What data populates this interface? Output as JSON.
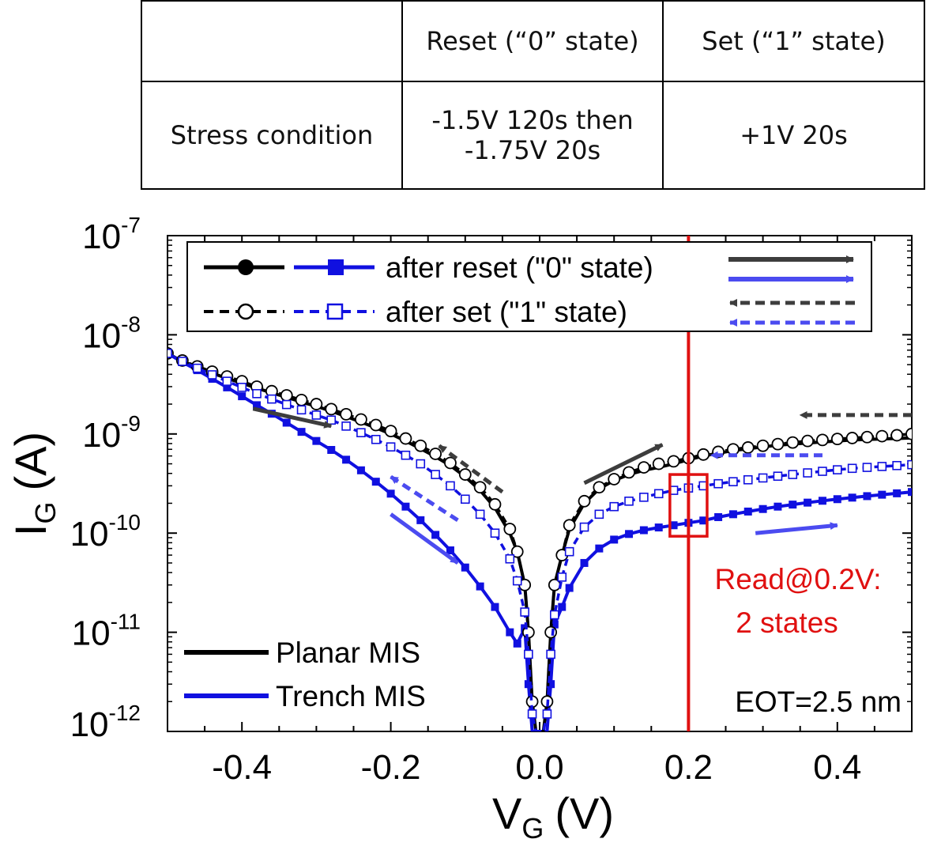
{
  "table": {
    "header": [
      "",
      "Reset  (“0” state)",
      "Set  (“1” state)"
    ],
    "row_label": "Stress condition",
    "reset_condition": [
      "-1.5V 120s then",
      "-1.75V 20s"
    ],
    "set_condition": "+1V 20s"
  },
  "chart_data": {
    "type": "line",
    "xlabel": "V",
    "xlabel_sub": "G",
    "xlabel_unit": "(V)",
    "ylabel": "I",
    "ylabel_sub": "G",
    "ylabel_unit": "(A)",
    "xlim": [
      -0.5,
      0.5
    ],
    "ylim": [
      1e-12,
      1e-07
    ],
    "yscale": "log",
    "x_ticks": [
      "-0.4",
      "-0.2",
      "0.0",
      "0.2",
      "0.4"
    ],
    "y_ticks": [
      {
        "base": "10",
        "exp": "-7"
      },
      {
        "base": "10",
        "exp": "-8"
      },
      {
        "base": "10",
        "exp": "-9"
      },
      {
        "base": "10",
        "exp": "-10"
      },
      {
        "base": "10",
        "exp": "-11"
      },
      {
        "base": "10",
        "exp": "-12"
      }
    ],
    "grid": false,
    "legend_top": {
      "position": "top",
      "entries": [
        "after reset (\"0\" state)",
        "after set (\"1\" state)"
      ]
    },
    "legend_bottom": {
      "position": "bottom-left",
      "entries": [
        "Planar MIS",
        "Trench MIS"
      ]
    },
    "colors": {
      "planar": "#000000",
      "trench": "#1010e0",
      "arrow_dark": "#3d3d3d",
      "arrow_blue": "#4b4bf0",
      "read": "#e01010"
    },
    "read_line_x": 0.2,
    "read_label": [
      "Read@0.2V:",
      "2 states"
    ],
    "eot_label": "EOT=2.5 nm",
    "series": [
      {
        "name": "Planar MIS after reset (\"0\" state)",
        "device": "planar",
        "state": "reset",
        "x": [
          -0.5,
          -0.48,
          -0.46,
          -0.44,
          -0.42,
          -0.4,
          -0.38,
          -0.36,
          -0.34,
          -0.32,
          -0.3,
          -0.28,
          -0.26,
          -0.24,
          -0.22,
          -0.2,
          -0.18,
          -0.16,
          -0.14,
          -0.12,
          -0.1,
          -0.08,
          -0.06,
          -0.04,
          -0.03,
          -0.02,
          -0.015,
          -0.01,
          -0.005,
          0.005,
          0.01,
          0.015,
          0.02,
          0.03,
          0.04,
          0.06,
          0.08,
          0.1,
          0.12,
          0.14,
          0.16,
          0.18,
          0.2,
          0.22,
          0.24,
          0.26,
          0.28,
          0.3,
          0.32,
          0.34,
          0.36,
          0.38,
          0.4,
          0.42,
          0.44,
          0.46,
          0.48,
          0.5
        ],
        "y": [
          6.5e-09,
          5.4e-09,
          4.7e-09,
          4.1e-09,
          3.65e-09,
          3.25e-09,
          2.9e-09,
          2.6e-09,
          2.35e-09,
          2.1e-09,
          1.9e-09,
          1.7e-09,
          1.5e-09,
          1.32e-09,
          1.15e-09,
          1e-09,
          8.5e-10,
          7.1e-10,
          5.9e-10,
          4.8e-10,
          3.7e-10,
          2.7e-10,
          1.8e-10,
          1e-10,
          6.5e-11,
          3e-11,
          1e-11,
          2e-12,
          1e-12,
          1e-12,
          2e-12,
          1e-11,
          3e-11,
          6e-11,
          1.1e-10,
          2e-10,
          2.8e-10,
          3.4e-10,
          3.9e-10,
          4.3e-10,
          4.6e-10,
          5e-10,
          5.5e-10,
          6e-10,
          6.4e-10,
          6.8e-10,
          7.1e-10,
          7.4e-10,
          7.7e-10,
          7.9e-10,
          8.1e-10,
          8.3e-10,
          8.5e-10,
          8.7e-10,
          8.8e-10,
          8.9e-10,
          9e-10,
          9.1e-10
        ]
      },
      {
        "name": "Trench MIS after reset (\"0\" state)",
        "device": "trench",
        "state": "reset",
        "x": [
          -0.5,
          -0.48,
          -0.46,
          -0.44,
          -0.42,
          -0.4,
          -0.38,
          -0.36,
          -0.34,
          -0.32,
          -0.3,
          -0.28,
          -0.26,
          -0.24,
          -0.22,
          -0.2,
          -0.18,
          -0.16,
          -0.14,
          -0.12,
          -0.1,
          -0.08,
          -0.06,
          -0.04,
          -0.03,
          -0.02,
          -0.015,
          -0.01,
          -0.005,
          0.005,
          0.01,
          0.015,
          0.02,
          0.03,
          0.04,
          0.06,
          0.08,
          0.1,
          0.12,
          0.14,
          0.16,
          0.18,
          0.2,
          0.22,
          0.24,
          0.26,
          0.28,
          0.3,
          0.32,
          0.34,
          0.36,
          0.38,
          0.4,
          0.42,
          0.44,
          0.46,
          0.48,
          0.5
        ],
        "y": [
          6.5e-09,
          5.3e-09,
          4.4e-09,
          3.6e-09,
          2.95e-09,
          2.4e-09,
          1.95e-09,
          1.6e-09,
          1.3e-09,
          1.05e-09,
          8.5e-10,
          6.9e-10,
          5.5e-10,
          4.3e-10,
          3.3e-10,
          2.5e-10,
          1.85e-10,
          1.35e-10,
          9.6e-11,
          6.7e-11,
          4.5e-11,
          2.9e-11,
          1.8e-11,
          1e-11,
          7.7e-12,
          1.1e-11,
          3e-12,
          1e-12,
          1e-12,
          1e-12,
          1e-12,
          3e-12,
          1.2e-11,
          1.8e-11,
          2.8e-11,
          5e-11,
          7e-11,
          8.6e-11,
          9.8e-11,
          1.07e-10,
          1.14e-10,
          1.2e-10,
          1.27e-10,
          1.34e-10,
          1.45e-10,
          1.55e-10,
          1.65e-10,
          1.75e-10,
          1.85e-10,
          1.94e-10,
          2.03e-10,
          2.12e-10,
          2.2e-10,
          2.28e-10,
          2.36e-10,
          2.44e-10,
          2.52e-10,
          2.6e-10
        ]
      },
      {
        "name": "Planar MIS after set (\"1\" state)",
        "device": "planar",
        "state": "set",
        "x": [
          -0.5,
          -0.48,
          -0.46,
          -0.44,
          -0.42,
          -0.4,
          -0.38,
          -0.36,
          -0.34,
          -0.32,
          -0.3,
          -0.28,
          -0.26,
          -0.24,
          -0.22,
          -0.2,
          -0.18,
          -0.16,
          -0.14,
          -0.12,
          -0.1,
          -0.08,
          -0.06,
          -0.04,
          -0.03,
          -0.02,
          -0.015,
          -0.01,
          -0.005,
          0.005,
          0.01,
          0.015,
          0.02,
          0.03,
          0.04,
          0.06,
          0.08,
          0.1,
          0.12,
          0.14,
          0.16,
          0.18,
          0.2,
          0.22,
          0.24,
          0.26,
          0.28,
          0.3,
          0.32,
          0.34,
          0.36,
          0.38,
          0.4,
          0.42,
          0.44,
          0.46,
          0.48,
          0.5
        ],
        "y": [
          6.5e-09,
          5.5e-09,
          4.8e-09,
          4.25e-09,
          3.8e-09,
          3.4e-09,
          3e-09,
          2.7e-09,
          2.45e-09,
          2.2e-09,
          2e-09,
          1.78e-09,
          1.58e-09,
          1.4e-09,
          1.23e-09,
          1.07e-09,
          9e-10,
          7.6e-10,
          6.3e-10,
          5.1e-10,
          3.9e-10,
          2.9e-10,
          1.95e-10,
          1.1e-10,
          6.5e-11,
          3e-11,
          1e-11,
          2e-12,
          1e-12,
          1e-12,
          2e-12,
          1e-11,
          3e-11,
          6e-11,
          1.2e-10,
          2.1e-10,
          2.9e-10,
          3.5e-10,
          4.1e-10,
          4.6e-10,
          5e-10,
          5.3e-10,
          5.7e-10,
          6.2e-10,
          6.6e-10,
          7e-10,
          7.3e-10,
          7.6e-10,
          7.9e-10,
          8.2e-10,
          8.5e-10,
          8.7e-10,
          8.9e-10,
          9.1e-10,
          9.3e-10,
          9.5e-10,
          9.7e-10,
          1e-09
        ]
      },
      {
        "name": "Trench MIS after set (\"1\" state)",
        "device": "trench",
        "state": "set",
        "x": [
          -0.5,
          -0.48,
          -0.46,
          -0.44,
          -0.42,
          -0.4,
          -0.38,
          -0.36,
          -0.34,
          -0.32,
          -0.3,
          -0.28,
          -0.26,
          -0.24,
          -0.22,
          -0.2,
          -0.18,
          -0.16,
          -0.14,
          -0.12,
          -0.1,
          -0.08,
          -0.06,
          -0.04,
          -0.03,
          -0.02,
          -0.015,
          -0.01,
          -0.005,
          0.005,
          0.01,
          0.015,
          0.02,
          0.03,
          0.04,
          0.06,
          0.08,
          0.1,
          0.12,
          0.14,
          0.16,
          0.18,
          0.2,
          0.22,
          0.24,
          0.26,
          0.28,
          0.3,
          0.32,
          0.34,
          0.36,
          0.38,
          0.4,
          0.42,
          0.44,
          0.46,
          0.48,
          0.5
        ],
        "y": [
          6.5e-09,
          5.4e-09,
          4.6e-09,
          3.95e-09,
          3.4e-09,
          2.95e-09,
          2.55e-09,
          2.25e-09,
          1.98e-09,
          1.75e-09,
          1.55e-09,
          1.38e-09,
          1.2e-09,
          1.03e-09,
          8.8e-10,
          7.4e-10,
          6.1e-10,
          5e-10,
          3.9e-10,
          3e-10,
          2.2e-10,
          1.55e-10,
          1e-10,
          5.5e-11,
          3.3e-11,
          1.6e-11,
          6e-12,
          1.5e-12,
          1e-12,
          1e-12,
          1.5e-12,
          6e-12,
          1.5e-11,
          3.6e-11,
          6.5e-11,
          1.15e-10,
          1.55e-10,
          1.85e-10,
          2.1e-10,
          2.3e-10,
          2.5e-10,
          2.7e-10,
          2.85e-10,
          3e-10,
          3.15e-10,
          3.3e-10,
          3.45e-10,
          3.6e-10,
          3.75e-10,
          3.9e-10,
          4.05e-10,
          4.2e-10,
          4.35e-10,
          4.5e-10,
          4.6e-10,
          4.7e-10,
          4.8e-10,
          4.9e-10
        ]
      }
    ]
  }
}
